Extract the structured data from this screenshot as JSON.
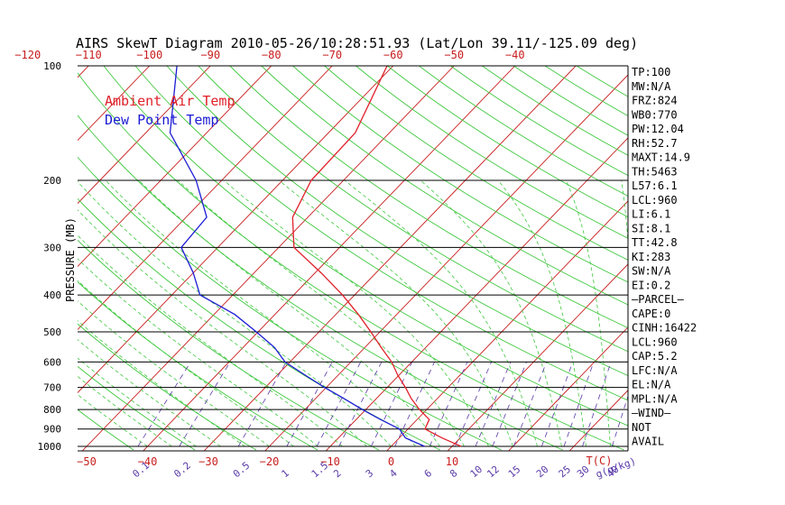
{
  "chart_data": {
    "type": "line",
    "title": "AIRS SkewT Diagram 2010-05-26/10:28:51.93 (Lat/Lon 39.11/-125.09 deg)",
    "ylabel": "PRESSURE (MB)",
    "y_scale": "log-pressure",
    "ylim": [
      1000,
      100
    ],
    "xlim_bottom": [
      -55,
      12
    ],
    "pressure_ticks": [
      100,
      200,
      300,
      400,
      500,
      600,
      700,
      800,
      900,
      1000
    ],
    "pressure_gridlines": [
      100,
      200,
      300,
      400,
      500,
      600,
      700,
      800,
      900,
      1000
    ],
    "top_temp_ticks": [
      -120,
      -110,
      -100,
      -90,
      -80,
      -70,
      -60,
      -50,
      -40
    ],
    "bottom_temp_ticks": [
      -50,
      -40,
      -30,
      -20,
      -10,
      0,
      10
    ],
    "bottom_temp_unit": "T(C)",
    "mixing_ratio_labels": [
      "0.1",
      "0.2",
      "0.5",
      "1",
      "1.5",
      "2",
      "3",
      "4",
      "6",
      "8",
      "10",
      "12",
      "15",
      "20",
      "25",
      "30",
      "40"
    ],
    "mixing_ratio_unit": "g(g/kg)",
    "legend": [
      {
        "name": "Ambient Air Temp",
        "color": "#e0202a"
      },
      {
        "name": "Dew Point Temp",
        "color": "#1c1cd4"
      }
    ],
    "legend_position": "top-left",
    "isotherm_color": "#c81c1c",
    "dry_adiabat_color": "#3ec83e",
    "moist_adiabat_color": "#3ec83e",
    "mixing_ratio_color": "#5a3aa8",
    "series": [
      {
        "name": "Ambient Air Temp",
        "color": "#e0202a",
        "points": [
          {
            "p": 1000,
            "t": 11.5
          },
          {
            "p": 950,
            "t": 7.0
          },
          {
            "p": 900,
            "t": 2.8
          },
          {
            "p": 850,
            "t": 2.0
          },
          {
            "p": 800,
            "t": -1.2
          },
          {
            "p": 750,
            "t": -4.2
          },
          {
            "p": 700,
            "t": -7.0
          },
          {
            "p": 650,
            "t": -10.2
          },
          {
            "p": 600,
            "t": -13.3
          },
          {
            "p": 550,
            "t": -17.3
          },
          {
            "p": 500,
            "t": -21.5
          },
          {
            "p": 450,
            "t": -26.3
          },
          {
            "p": 400,
            "t": -32.0
          },
          {
            "p": 350,
            "t": -39.0
          },
          {
            "p": 300,
            "t": -47.5
          },
          {
            "p": 250,
            "t": -52.5
          },
          {
            "p": 200,
            "t": -55.3
          },
          {
            "p": 150,
            "t": -55.6
          },
          {
            "p": 100,
            "t": -61.0
          }
        ]
      },
      {
        "name": "Dew Point Temp",
        "color": "#1c1cd4",
        "points": [
          {
            "p": 1000,
            "t": 5.5
          },
          {
            "p": 950,
            "t": 1.0
          },
          {
            "p": 900,
            "t": -1.4
          },
          {
            "p": 850,
            "t": -6.0
          },
          {
            "p": 800,
            "t": -10.6
          },
          {
            "p": 750,
            "t": -15.2
          },
          {
            "p": 700,
            "t": -20.3
          },
          {
            "p": 650,
            "t": -25.4
          },
          {
            "p": 600,
            "t": -30.8
          },
          {
            "p": 550,
            "t": -34.8
          },
          {
            "p": 500,
            "t": -40.3
          },
          {
            "p": 450,
            "t": -46.6
          },
          {
            "p": 400,
            "t": -55.4
          },
          {
            "p": 350,
            "t": -60.0
          },
          {
            "p": 300,
            "t": -66.0
          },
          {
            "p": 250,
            "t": -66.6
          },
          {
            "p": 200,
            "t": -74.2
          },
          {
            "p": 150,
            "t": -86.0
          },
          {
            "p": 100,
            "t": -95.5
          }
        ]
      }
    ]
  },
  "indices": [
    "TP:100",
    "MW:N/A",
    "FRZ:824",
    "WB0:770",
    "PW:12.04",
    "RH:52.7",
    "MAXT:14.9",
    "TH:5463",
    "L57:6.1",
    "LCL:960",
    "LI:6.1",
    "SI:8.1",
    "TT:42.8",
    "KI:283",
    "SW:N/A",
    "EI:0.2",
    "—PARCEL—",
    "CAPE:0",
    "CINH:16422",
    "LCL:960",
    "CAP:5.2",
    "LFC:N/A",
    "EL:N/A",
    "MPL:N/A",
    "—WIND—",
    "NOT",
    "AVAIL"
  ]
}
